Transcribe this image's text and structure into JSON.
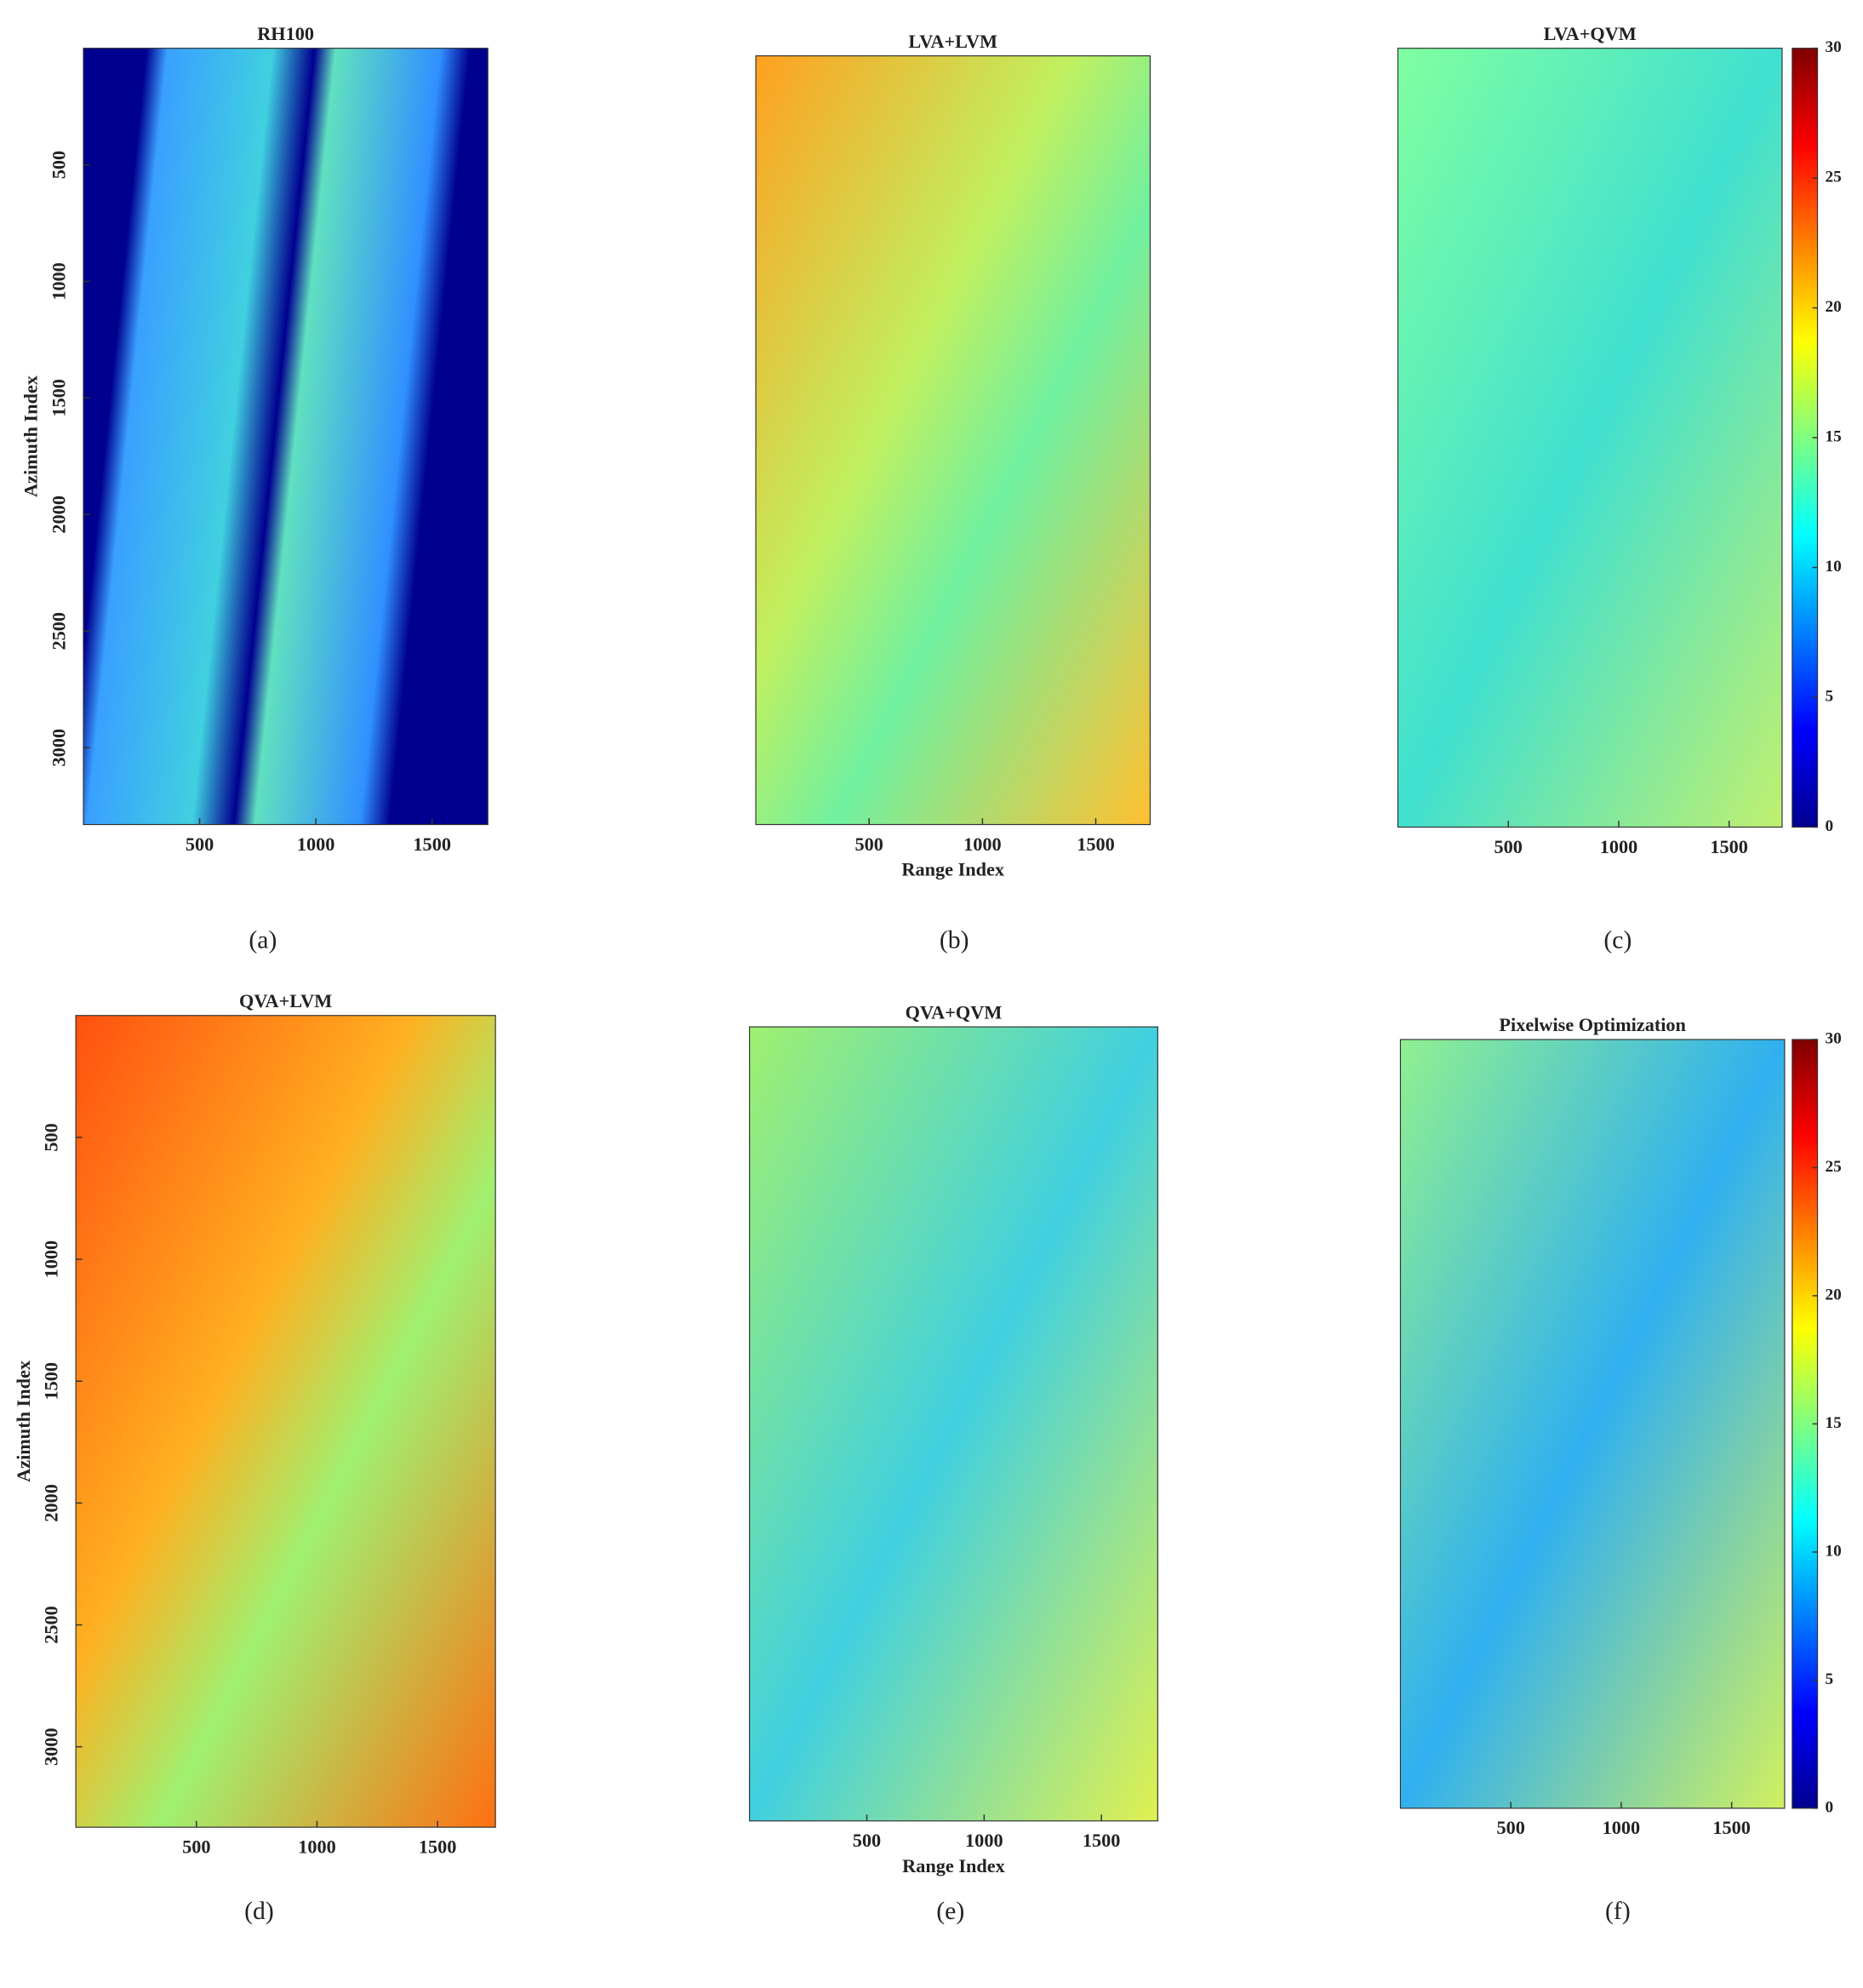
{
  "chart_data": [
    {
      "type": "heatmap",
      "title": "RH100",
      "caption": "(a)",
      "ylabel": "Azimuth Index",
      "colormap": "jet",
      "xlim": [
        0,
        1740
      ],
      "xticks": [
        500,
        1000,
        1500
      ],
      "ylim": [
        0,
        3330
      ],
      "yticks": [
        500,
        1000,
        1500,
        2000,
        2500,
        3000
      ],
      "y_reversed": true
    },
    {
      "type": "heatmap",
      "title": "LVA+LVM",
      "caption": "(b)",
      "xlabel": "Range Index",
      "colormap": "jet",
      "xlim": [
        0,
        1740
      ],
      "xticks": [
        500,
        1000,
        1500
      ]
    },
    {
      "type": "heatmap",
      "title": "LVA+QVM",
      "caption": "(c)",
      "colormap": "jet",
      "xlim": [
        0,
        1740
      ],
      "xticks": [
        500,
        1000,
        1500
      ],
      "clim": [
        0,
        30
      ],
      "cticks": [
        0,
        5,
        10,
        15,
        20,
        25,
        30
      ]
    },
    {
      "type": "heatmap",
      "title": "QVA+LVM",
      "caption": "(d)",
      "ylabel": "Azimuth Index",
      "colormap": "jet",
      "xlim": [
        0,
        1740
      ],
      "xticks": [
        500,
        1000,
        1500
      ],
      "ylim": [
        0,
        3330
      ],
      "yticks": [
        500,
        1000,
        1500,
        2000,
        2500,
        3000
      ],
      "y_reversed": true
    },
    {
      "type": "heatmap",
      "title": "QVA+QVM",
      "caption": "(e)",
      "xlabel": "Range Index",
      "colormap": "jet",
      "xlim": [
        0,
        1740
      ],
      "xticks": [
        500,
        1000,
        1500
      ]
    },
    {
      "type": "heatmap",
      "title": "Pixelwise Optimization",
      "caption": "(f)",
      "colormap": "jet",
      "xlim": [
        0,
        1740
      ],
      "xticks": [
        500,
        1000,
        1500
      ],
      "clim": [
        0,
        30
      ],
      "cticks": [
        0,
        5,
        10,
        15,
        20,
        25,
        30
      ]
    }
  ]
}
